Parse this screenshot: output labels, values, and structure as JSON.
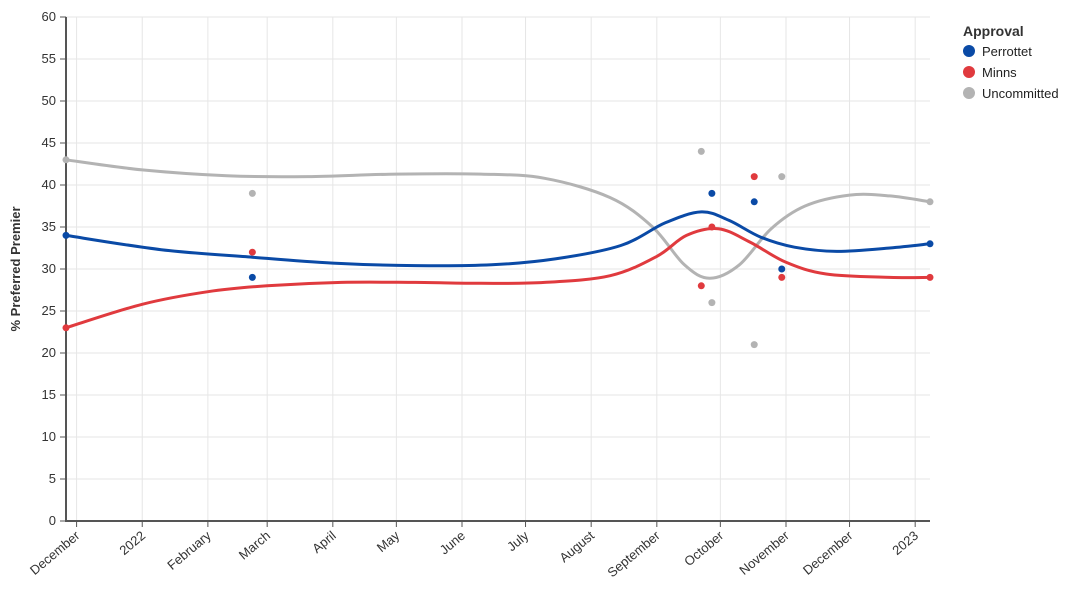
{
  "chart_data": {
    "type": "line",
    "title": "",
    "xlabel": "",
    "ylabel": "% Preferred Premier",
    "ylim": [
      0,
      60
    ],
    "yticks": [
      0,
      5,
      10,
      15,
      20,
      25,
      30,
      35,
      40,
      45,
      50,
      55,
      60
    ],
    "xlim": [
      "2021-11-26",
      "2023-01-08"
    ],
    "xticks": [
      {
        "date": "2021-12-01",
        "label": "December"
      },
      {
        "date": "2022-01-01",
        "label": "2022"
      },
      {
        "date": "2022-02-01",
        "label": "February"
      },
      {
        "date": "2022-03-01",
        "label": "March"
      },
      {
        "date": "2022-04-01",
        "label": "April"
      },
      {
        "date": "2022-05-01",
        "label": "May"
      },
      {
        "date": "2022-06-01",
        "label": "June"
      },
      {
        "date": "2022-07-01",
        "label": "July"
      },
      {
        "date": "2022-08-01",
        "label": "August"
      },
      {
        "date": "2022-09-01",
        "label": "September"
      },
      {
        "date": "2022-10-01",
        "label": "October"
      },
      {
        "date": "2022-11-01",
        "label": "November"
      },
      {
        "date": "2022-12-01",
        "label": "December"
      },
      {
        "date": "2023-01-01",
        "label": "2023"
      }
    ],
    "grid": true,
    "legend": {
      "title": "Approval",
      "placement": "top-right"
    },
    "series": [
      {
        "name": "Perrottet",
        "color": "#0a4aa6",
        "points": [
          {
            "x": "2021-11-26",
            "y": 34
          },
          {
            "x": "2022-02-22",
            "y": 29
          },
          {
            "x": "2022-09-27",
            "y": 39
          },
          {
            "x": "2022-10-17",
            "y": 38
          },
          {
            "x": "2022-10-30",
            "y": 30
          },
          {
            "x": "2023-01-08",
            "y": 33
          }
        ],
        "trend": [
          {
            "x": "2021-11-26",
            "y": 34
          },
          {
            "x": "2022-01-10",
            "y": 32.3
          },
          {
            "x": "2022-02-22",
            "y": 31.4
          },
          {
            "x": "2022-04-01",
            "y": 30.7
          },
          {
            "x": "2022-05-10",
            "y": 30.4
          },
          {
            "x": "2022-06-15",
            "y": 30.5
          },
          {
            "x": "2022-07-15",
            "y": 31.2
          },
          {
            "x": "2022-08-15",
            "y": 32.8
          },
          {
            "x": "2022-09-05",
            "y": 35.5
          },
          {
            "x": "2022-09-22",
            "y": 36.8
          },
          {
            "x": "2022-10-05",
            "y": 35.8
          },
          {
            "x": "2022-10-20",
            "y": 33.8
          },
          {
            "x": "2022-11-05",
            "y": 32.6
          },
          {
            "x": "2022-11-25",
            "y": 32.1
          },
          {
            "x": "2022-12-20",
            "y": 32.5
          },
          {
            "x": "2023-01-08",
            "y": 33
          }
        ]
      },
      {
        "name": "Minns",
        "color": "#e03a3e",
        "points": [
          {
            "x": "2021-11-26",
            "y": 23
          },
          {
            "x": "2022-02-22",
            "y": 32
          },
          {
            "x": "2022-09-22",
            "y": 28
          },
          {
            "x": "2022-09-27",
            "y": 35
          },
          {
            "x": "2022-10-17",
            "y": 41
          },
          {
            "x": "2022-10-30",
            "y": 29
          },
          {
            "x": "2023-01-08",
            "y": 29
          }
        ],
        "trend": [
          {
            "x": "2021-11-26",
            "y": 23
          },
          {
            "x": "2022-01-01",
            "y": 25.8
          },
          {
            "x": "2022-02-01",
            "y": 27.3
          },
          {
            "x": "2022-03-01",
            "y": 28.0
          },
          {
            "x": "2022-04-05",
            "y": 28.4
          },
          {
            "x": "2022-05-10",
            "y": 28.4
          },
          {
            "x": "2022-06-10",
            "y": 28.3
          },
          {
            "x": "2022-07-10",
            "y": 28.4
          },
          {
            "x": "2022-08-10",
            "y": 29.2
          },
          {
            "x": "2022-09-01",
            "y": 31.5
          },
          {
            "x": "2022-09-15",
            "y": 34.0
          },
          {
            "x": "2022-09-30",
            "y": 34.8
          },
          {
            "x": "2022-10-15",
            "y": 33.2
          },
          {
            "x": "2022-11-01",
            "y": 30.8
          },
          {
            "x": "2022-11-20",
            "y": 29.4
          },
          {
            "x": "2022-12-20",
            "y": 29.0
          },
          {
            "x": "2023-01-08",
            "y": 29
          }
        ]
      },
      {
        "name": "Uncommitted",
        "color": "#b3b3b3",
        "points": [
          {
            "x": "2021-11-26",
            "y": 43
          },
          {
            "x": "2022-02-22",
            "y": 39
          },
          {
            "x": "2022-09-22",
            "y": 44
          },
          {
            "x": "2022-09-27",
            "y": 26
          },
          {
            "x": "2022-10-17",
            "y": 21
          },
          {
            "x": "2022-10-30",
            "y": 41
          },
          {
            "x": "2023-01-08",
            "y": 38
          }
        ],
        "trend": [
          {
            "x": "2021-11-26",
            "y": 43
          },
          {
            "x": "2022-01-01",
            "y": 41.8
          },
          {
            "x": "2022-02-10",
            "y": 41.1
          },
          {
            "x": "2022-03-20",
            "y": 41.0
          },
          {
            "x": "2022-05-01",
            "y": 41.3
          },
          {
            "x": "2022-06-10",
            "y": 41.3
          },
          {
            "x": "2022-07-10",
            "y": 40.8
          },
          {
            "x": "2022-08-10",
            "y": 38.5
          },
          {
            "x": "2022-08-30",
            "y": 35.0
          },
          {
            "x": "2022-09-14",
            "y": 30.5
          },
          {
            "x": "2022-09-26",
            "y": 28.9
          },
          {
            "x": "2022-10-10",
            "y": 30.5
          },
          {
            "x": "2022-10-25",
            "y": 34.8
          },
          {
            "x": "2022-11-10",
            "y": 37.5
          },
          {
            "x": "2022-12-01",
            "y": 38.8
          },
          {
            "x": "2022-12-20",
            "y": 38.7
          },
          {
            "x": "2023-01-08",
            "y": 38
          }
        ]
      }
    ]
  }
}
